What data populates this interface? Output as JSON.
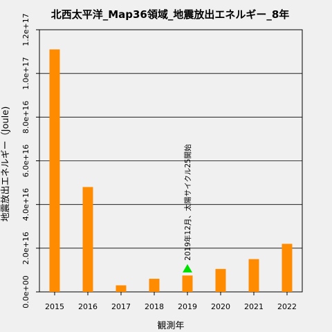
{
  "chart_data": {
    "type": "bar",
    "title": "北西太平洋_Map36領域_地震放出エネルギー_8年",
    "xlabel": "観測年",
    "ylabel": "地震放出エネルギー（Joule)",
    "categories": [
      "2015",
      "2016",
      "2017",
      "2018",
      "2019",
      "2020",
      "2021",
      "2022"
    ],
    "values": [
      1.11e+17,
      4.8e+16,
      3000000000000000.0,
      6000000000000000.0,
      7500000000000000.0,
      1.05e+16,
      1.5e+16,
      2.2e+16
    ],
    "ylim": [
      0,
      1.2e+17
    ],
    "yticks": [
      0,
      2e+16,
      4e+16,
      6e+16,
      8e+16,
      1e+17,
      1.2e+17
    ],
    "ytick_labels": [
      "0.0e+00",
      "2.0e+16",
      "4.0e+16",
      "6.0e+16",
      "8.0e+16",
      "1.0e+17",
      "1.2e+17"
    ],
    "grid": "horizontal",
    "bar_color": "#ff8c00",
    "annotation": {
      "category": "2019",
      "value": 1.05e+16,
      "text": "2019年12月、太陽サイクル25開始",
      "marker_color": "#00e000"
    }
  }
}
